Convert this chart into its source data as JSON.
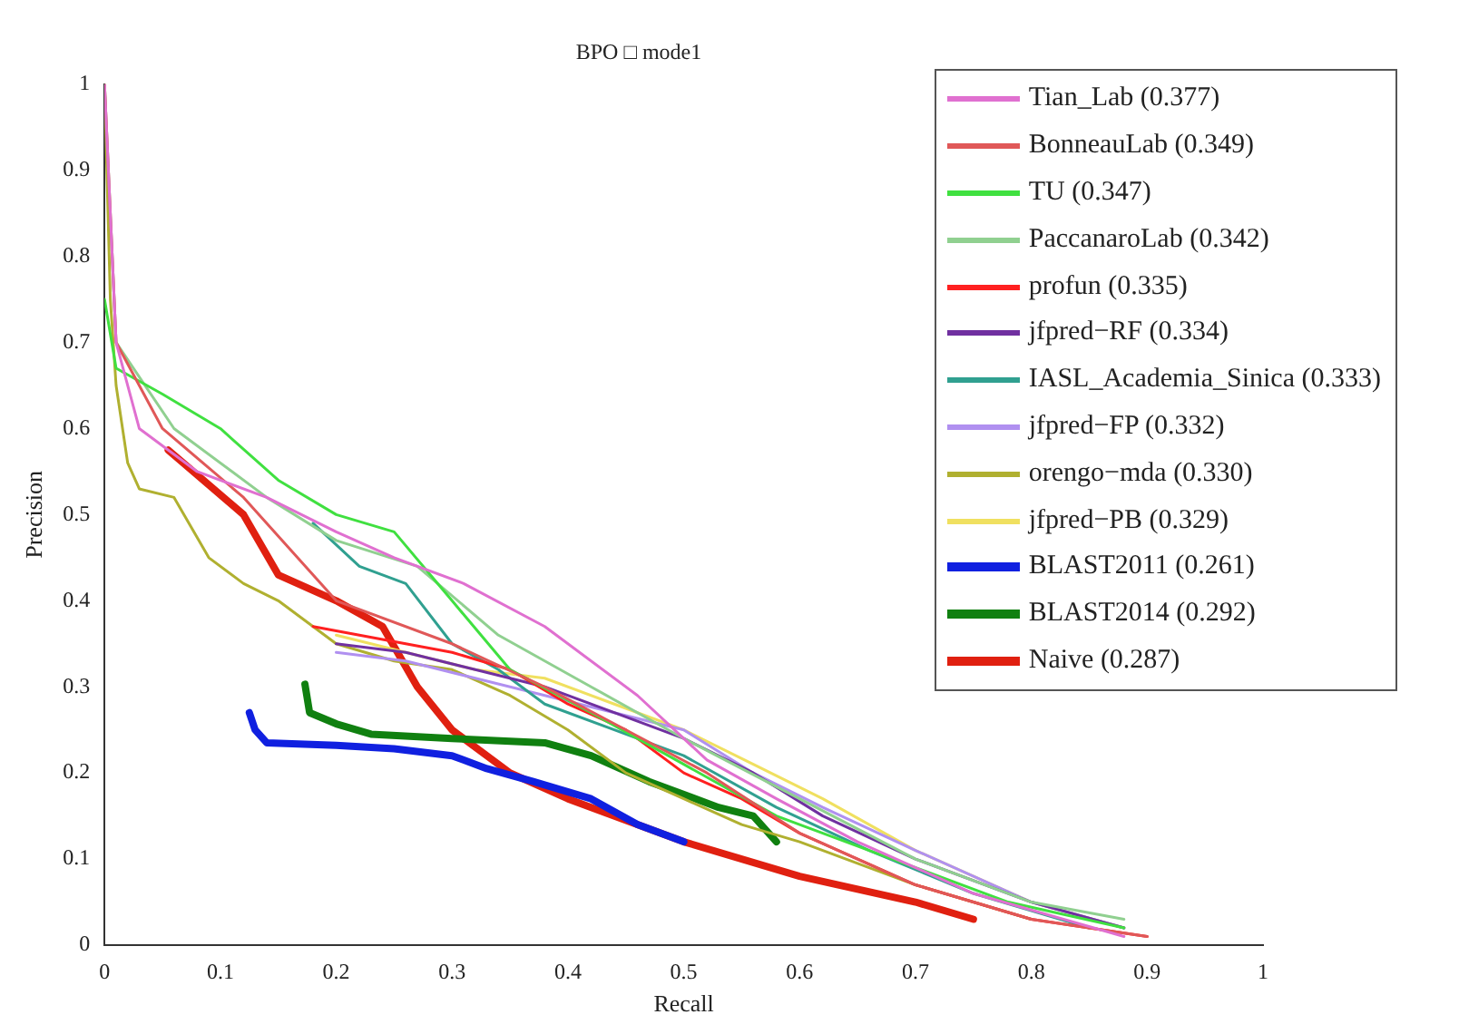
{
  "chart_data": {
    "type": "line",
    "title": "BPO □ mode1",
    "xlabel": "Recall",
    "ylabel": "Precision",
    "xlim": [
      0,
      1
    ],
    "ylim": [
      0,
      1
    ],
    "xticks": [
      0,
      0.1,
      0.2,
      0.3,
      0.4,
      0.5,
      0.6,
      0.7,
      0.8,
      0.9,
      1
    ],
    "yticks": [
      0,
      0.1,
      0.2,
      0.3,
      0.4,
      0.5,
      0.6,
      0.7,
      0.8,
      0.9,
      1
    ],
    "grid": false,
    "legend": "top right",
    "marker": "none",
    "line_style": "solid",
    "series": [
      {
        "name": "Tian_Lab (0.377)",
        "color": "#e070d0",
        "x": [
          0,
          0.01,
          0.03,
          0.08,
          0.14,
          0.2,
          0.25,
          0.31,
          0.38,
          0.46,
          0.52,
          0.58,
          0.65,
          0.75,
          0.88
        ],
        "values": [
          1,
          0.7,
          0.6,
          0.55,
          0.52,
          0.48,
          0.45,
          0.42,
          0.37,
          0.29,
          0.215,
          0.17,
          0.12,
          0.06,
          0.01
        ]
      },
      {
        "name": "BonneauLab (0.349)",
        "color": "#e05858",
        "x": [
          0,
          0.01,
          0.05,
          0.12,
          0.2,
          0.3,
          0.38,
          0.45,
          0.52,
          0.6,
          0.7,
          0.8,
          0.9
        ],
        "values": [
          1,
          0.7,
          0.6,
          0.52,
          0.4,
          0.35,
          0.3,
          0.25,
          0.2,
          0.13,
          0.07,
          0.03,
          0.01
        ]
      },
      {
        "name": "TU (0.347)",
        "color": "#40e040",
        "x": [
          0,
          0.01,
          0.05,
          0.1,
          0.15,
          0.2,
          0.25,
          0.3,
          0.35,
          0.42,
          0.5,
          0.58,
          0.68,
          0.78,
          0.88
        ],
        "values": [
          0.75,
          0.67,
          0.64,
          0.6,
          0.54,
          0.5,
          0.48,
          0.4,
          0.32,
          0.27,
          0.21,
          0.15,
          0.1,
          0.05,
          0.02
        ]
      },
      {
        "name": "PaccanaroLab (0.342)",
        "color": "#90d090",
        "x": [
          0,
          0.01,
          0.06,
          0.14,
          0.2,
          0.27,
          0.34,
          0.42,
          0.5,
          0.6,
          0.7,
          0.8,
          0.88
        ],
        "values": [
          1,
          0.7,
          0.6,
          0.52,
          0.47,
          0.44,
          0.36,
          0.3,
          0.24,
          0.17,
          0.1,
          0.05,
          0.03
        ]
      },
      {
        "name": "profun (0.335)",
        "color": "#ff2020",
        "x": [
          0.18,
          0.22,
          0.26,
          0.3,
          0.35,
          0.4,
          0.45,
          0.5,
          0.55,
          0.6,
          0.7,
          0.8,
          0.9
        ],
        "values": [
          0.37,
          0.36,
          0.35,
          0.34,
          0.32,
          0.28,
          0.25,
          0.2,
          0.17,
          0.13,
          0.07,
          0.03,
          0.01
        ]
      },
      {
        "name": "jfpred−RF (0.334)",
        "color": "#7030a0",
        "x": [
          0.2,
          0.26,
          0.32,
          0.38,
          0.44,
          0.5,
          0.56,
          0.62,
          0.7,
          0.8,
          0.88
        ],
        "values": [
          0.35,
          0.34,
          0.32,
          0.3,
          0.27,
          0.24,
          0.2,
          0.15,
          0.1,
          0.05,
          0.02
        ]
      },
      {
        "name": "IASL_Academia_Sinica (0.333)",
        "color": "#30a090",
        "x": [
          0.18,
          0.22,
          0.26,
          0.3,
          0.34,
          0.38,
          0.44,
          0.5,
          0.58,
          0.66,
          0.75,
          0.85
        ],
        "values": [
          0.49,
          0.44,
          0.42,
          0.35,
          0.32,
          0.28,
          0.25,
          0.22,
          0.16,
          0.11,
          0.06,
          0.02
        ]
      },
      {
        "name": "jfpred−FP (0.332)",
        "color": "#b090f0",
        "x": [
          0.2,
          0.26,
          0.32,
          0.38,
          0.44,
          0.5,
          0.56,
          0.62,
          0.7,
          0.8,
          0.88
        ],
        "values": [
          0.34,
          0.33,
          0.31,
          0.29,
          0.27,
          0.25,
          0.2,
          0.16,
          0.11,
          0.05,
          0.02
        ]
      },
      {
        "name": "orengo−mda (0.330)",
        "color": "#b0b030",
        "x": [
          0,
          0.005,
          0.01,
          0.02,
          0.03,
          0.06,
          0.09,
          0.12,
          0.15,
          0.2,
          0.25,
          0.3,
          0.35,
          0.4,
          0.45,
          0.5,
          0.55,
          0.6,
          0.7,
          0.8
        ],
        "values": [
          1,
          0.75,
          0.65,
          0.56,
          0.53,
          0.52,
          0.45,
          0.42,
          0.4,
          0.35,
          0.33,
          0.32,
          0.29,
          0.25,
          0.2,
          0.17,
          0.14,
          0.12,
          0.07,
          0.03
        ]
      },
      {
        "name": "jfpred−PB (0.329)",
        "color": "#f0e060",
        "x": [
          0.2,
          0.26,
          0.32,
          0.38,
          0.44,
          0.5,
          0.56,
          0.62,
          0.7,
          0.8,
          0.88
        ],
        "values": [
          0.36,
          0.34,
          0.32,
          0.31,
          0.28,
          0.25,
          0.21,
          0.17,
          0.11,
          0.05,
          0.02
        ]
      },
      {
        "name": "BLAST2011 (0.261)",
        "color": "#1020e0",
        "x": [
          0.125,
          0.13,
          0.14,
          0.2,
          0.25,
          0.3,
          0.33,
          0.37,
          0.42,
          0.46,
          0.5
        ],
        "values": [
          0.27,
          0.25,
          0.235,
          0.232,
          0.228,
          0.22,
          0.205,
          0.19,
          0.17,
          0.14,
          0.12
        ]
      },
      {
        "name": "BLAST2014 (0.292)",
        "color": "#108010",
        "x": [
          0.173,
          0.177,
          0.2,
          0.23,
          0.3,
          0.38,
          0.42,
          0.47,
          0.53,
          0.56,
          0.58
        ],
        "values": [
          0.303,
          0.27,
          0.257,
          0.245,
          0.24,
          0.235,
          0.22,
          0.19,
          0.16,
          0.15,
          0.12
        ]
      },
      {
        "name": "Naive (0.287)",
        "color": "#e02010",
        "x": [
          0.055,
          0.12,
          0.15,
          0.2,
          0.24,
          0.27,
          0.3,
          0.35,
          0.4,
          0.5,
          0.6,
          0.7,
          0.75
        ],
        "values": [
          0.575,
          0.5,
          0.43,
          0.4,
          0.37,
          0.3,
          0.25,
          0.2,
          0.17,
          0.12,
          0.08,
          0.05,
          0.03
        ]
      }
    ]
  }
}
